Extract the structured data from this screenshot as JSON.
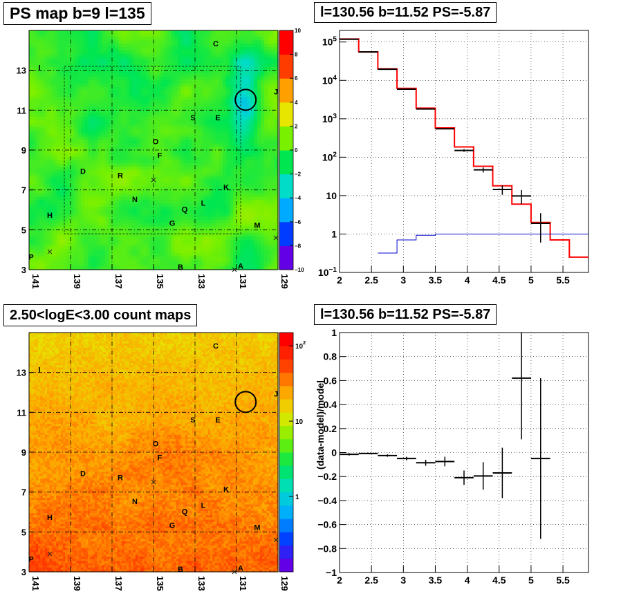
{
  "panels": {
    "ps_map": {
      "title": "PS map b=9 l=135"
    },
    "spectrum": {
      "title": "l=130.56 b=11.52 PS=-5.87"
    },
    "count_map": {
      "title": "2.50<logE<3.00 count maps"
    },
    "residual": {
      "title": "l=130.56 b=11.52 PS=-5.87"
    }
  },
  "colors": {
    "data": "#000000",
    "model": "#ff0000",
    "background_model": "#0000cc"
  },
  "chart_data": [
    {
      "type": "heatmap",
      "title": "PS map b=9 l=135",
      "x_ticks": [
        "141",
        "139",
        "137",
        "135",
        "133",
        "131",
        "129"
      ],
      "y_ticks": [
        "3",
        "5",
        "7",
        "9",
        "11",
        "13"
      ],
      "xlim": [
        141,
        129
      ],
      "ylim": [
        3,
        15
      ],
      "colorbar": {
        "ticks": [
          "−10",
          "−8",
          "−6",
          "−4",
          "−2",
          "0",
          "2",
          "4",
          "6",
          "8",
          "10"
        ],
        "range": [
          -10,
          10
        ]
      },
      "source_labels": [
        "C",
        "I",
        "S",
        "E",
        "O",
        "F",
        "D",
        "R",
        "K",
        "N",
        "L",
        "H",
        "Q",
        "G",
        "M",
        "P",
        "B",
        "A",
        "J"
      ],
      "marked_source": {
        "l": 130.56,
        "b": 11.52
      },
      "grid": true
    },
    {
      "type": "line",
      "title": "l=130.56 b=11.52 PS=-5.87",
      "xlim": [
        2,
        5.9
      ],
      "ylim": [
        0.1,
        200000
      ],
      "y_scale": "log",
      "x_ticks": [
        "2",
        "2.5",
        "3",
        "3.5",
        "4",
        "4.5",
        "5",
        "5.5"
      ],
      "y_ticks": [
        "10^−1",
        "1",
        "10",
        "10^2",
        "10^3",
        "10^4",
        "10^5"
      ],
      "grid": true,
      "series": [
        {
          "style": "step",
          "color": "#ff0000",
          "bin_edges": [
            2.0,
            2.3,
            2.6,
            2.9,
            3.2,
            3.5,
            3.8,
            4.1,
            4.4,
            4.7,
            5.0,
            5.3,
            5.6,
            5.9
          ],
          "values": [
            120000,
            55000,
            20000,
            6200,
            1900,
            580,
            185,
            58,
            18,
            6,
            2,
            0.7,
            0.25
          ]
        },
        {
          "style": "step",
          "color": "#0000cc",
          "bin_edges": [
            2.6,
            2.9,
            3.2,
            3.5,
            5.9
          ],
          "values": [
            0.32,
            0.7,
            0.93,
            1.0
          ]
        },
        {
          "style": "errorbar",
          "color": "#000000",
          "x": [
            2.15,
            2.45,
            2.75,
            3.05,
            3.35,
            3.65,
            3.95,
            4.25,
            4.55,
            4.85,
            5.15
          ],
          "xerr": [
            0.15,
            0.15,
            0.15,
            0.15,
            0.15,
            0.15,
            0.15,
            0.15,
            0.15,
            0.15,
            0.15
          ],
          "y": [
            118000,
            55000,
            19500,
            5900,
            1800,
            550,
            150,
            47,
            14.5,
            9.8,
            1.9
          ],
          "ylo": [
            117000,
            54700,
            19300,
            5800,
            1760,
            530,
            138,
            40,
            10.5,
            6,
            0.6
          ],
          "yhi": [
            119000,
            55300,
            19700,
            6000,
            1840,
            570,
            162,
            54,
            18.5,
            14,
            3.5
          ]
        }
      ]
    },
    {
      "type": "heatmap",
      "title": "2.50<logE<3.00 count maps",
      "x_ticks": [
        "141",
        "139",
        "137",
        "135",
        "133",
        "131",
        "129"
      ],
      "y_ticks": [
        "3",
        "5",
        "7",
        "9",
        "11",
        "13"
      ],
      "xlim": [
        141,
        129
      ],
      "ylim": [
        3,
        15
      ],
      "colorbar": {
        "ticks": [
          "1",
          "10",
          "10^2"
        ],
        "scale": "log",
        "range": [
          0.1,
          150
        ]
      },
      "source_labels": [
        "C",
        "I",
        "S",
        "E",
        "O",
        "F",
        "D",
        "R",
        "K",
        "N",
        "L",
        "H",
        "Q",
        "G",
        "M",
        "P",
        "B",
        "A",
        "J"
      ],
      "marked_source": {
        "l": 130.56,
        "b": 11.52
      },
      "grid": true
    },
    {
      "type": "scatter",
      "title": "l=130.56 b=11.52 PS=-5.87",
      "ylabel": "(data-model)/model",
      "xlim": [
        2,
        5.9
      ],
      "ylim": [
        -1,
        1
      ],
      "x_ticks": [
        "2",
        "2.5",
        "3",
        "3.5",
        "4",
        "4.5",
        "5",
        "5.5"
      ],
      "y_ticks": [
        "−1",
        "−0.8",
        "−0.6",
        "−0.4",
        "−0.2",
        "0",
        "0.2",
        "0.4",
        "0.6",
        "0.8",
        "1"
      ],
      "grid": true,
      "series": [
        {
          "style": "errorbar",
          "color": "#000000",
          "x": [
            2.15,
            2.45,
            2.75,
            3.05,
            3.35,
            3.65,
            3.95,
            4.25,
            4.55,
            4.85,
            5.15
          ],
          "xerr": [
            0.15,
            0.15,
            0.15,
            0.15,
            0.15,
            0.15,
            0.15,
            0.15,
            0.15,
            0.15,
            0.15
          ],
          "y": [
            -0.015,
            -0.008,
            -0.025,
            -0.05,
            -0.085,
            -0.075,
            -0.21,
            -0.195,
            -0.17,
            0.62,
            -0.05
          ],
          "ylo": [
            -0.025,
            -0.015,
            -0.035,
            -0.065,
            -0.11,
            -0.115,
            -0.27,
            -0.31,
            -0.38,
            0.11,
            -0.72
          ],
          "yhi": [
            -0.005,
            -0.001,
            -0.015,
            -0.035,
            -0.06,
            -0.035,
            -0.15,
            -0.08,
            0.04,
            1.0,
            0.62
          ]
        }
      ]
    }
  ]
}
